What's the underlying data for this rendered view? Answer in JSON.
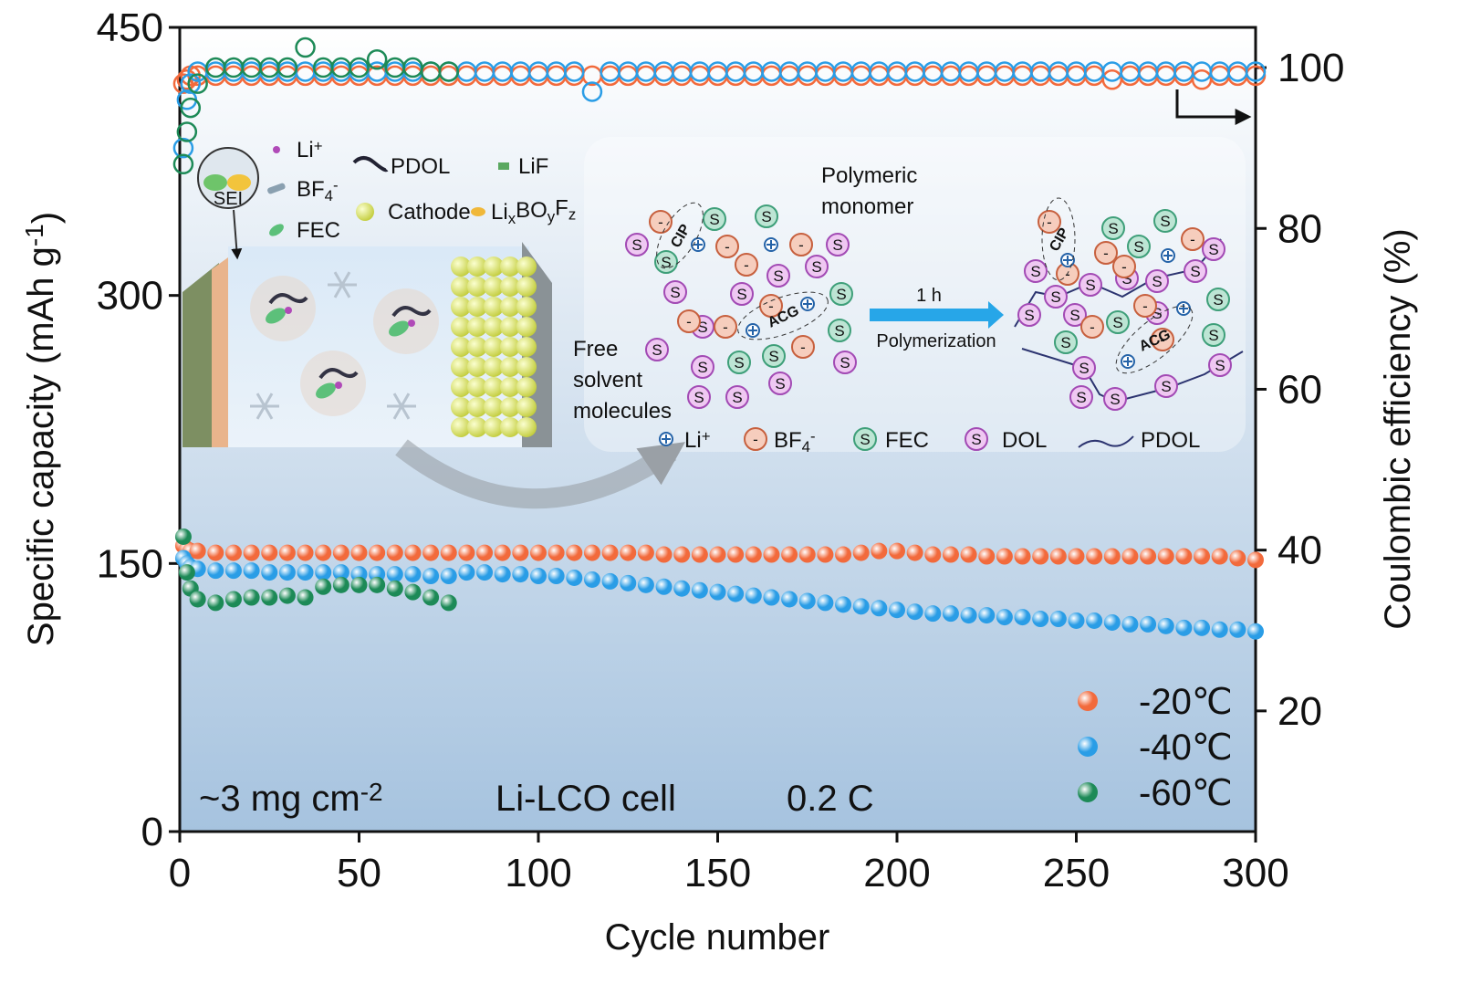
{
  "chart_data": {
    "type": "scatter",
    "x_label": "Cycle number",
    "y_label": [
      {
        "t": "Specific capacity (mAh g"
      },
      {
        "sup": "-1"
      },
      {
        "t": ")"
      }
    ],
    "y2_label": "Coulombic efficiency (%)",
    "xlim": [
      0,
      300
    ],
    "xticks": [
      0,
      50,
      100,
      150,
      200,
      250,
      300
    ],
    "ylim": [
      0,
      450
    ],
    "yticks": [
      0,
      150,
      300,
      450
    ],
    "y2lim": [
      5,
      105
    ],
    "y2ticks": [
      20,
      40,
      60,
      80,
      100
    ],
    "x": [
      1,
      2,
      3,
      5,
      10,
      15,
      20,
      25,
      30,
      35,
      40,
      45,
      50,
      55,
      60,
      65,
      70,
      75,
      80,
      85,
      90,
      95,
      100,
      105,
      110,
      115,
      120,
      125,
      130,
      135,
      140,
      145,
      150,
      155,
      160,
      165,
      170,
      175,
      180,
      185,
      190,
      195,
      200,
      205,
      210,
      215,
      220,
      225,
      230,
      235,
      240,
      245,
      250,
      255,
      260,
      265,
      270,
      275,
      280,
      285,
      290,
      295,
      300
    ],
    "series": [
      {
        "name": "-20℃",
        "color": "#f26a3c",
        "values": [
          160,
          158,
          157,
          157,
          156,
          156,
          156,
          156,
          156,
          156,
          156,
          156,
          156,
          156,
          156,
          156,
          156,
          156,
          156,
          156,
          156,
          156,
          156,
          156,
          156,
          156,
          156,
          156,
          156,
          155,
          155,
          155,
          155,
          155,
          155,
          155,
          155,
          155,
          155,
          155,
          156,
          157,
          157,
          156,
          155,
          155,
          155,
          154,
          154,
          154,
          154,
          154,
          154,
          154,
          154,
          154,
          154,
          154,
          154,
          154,
          154,
          153,
          152
        ],
        "efficiency": [
          98,
          98.5,
          99,
          99,
          99,
          99,
          99,
          99,
          99,
          99,
          99,
          99,
          99,
          99,
          99,
          99,
          99,
          99,
          99,
          99,
          99,
          99,
          99,
          99,
          99,
          99,
          99,
          99,
          99,
          99,
          99,
          99,
          99,
          99,
          99,
          99,
          99,
          99,
          99,
          99,
          99,
          99,
          99,
          99,
          99,
          99,
          99,
          99,
          99,
          99,
          99,
          99,
          99,
          99,
          98.5,
          99,
          99,
          99,
          99,
          98.5,
          99,
          99,
          99
        ]
      },
      {
        "name": "-40℃",
        "color": "#2a9de6",
        "values": [
          153,
          150,
          148,
          147,
          146,
          146,
          146,
          145,
          145,
          145,
          145,
          145,
          144,
          144,
          144,
          144,
          143,
          143,
          145,
          145,
          144,
          144,
          143,
          143,
          142,
          141,
          140,
          139,
          138,
          137,
          136,
          135,
          134,
          133,
          132,
          131,
          130,
          129,
          128,
          127,
          126,
          125,
          124,
          123,
          122,
          122,
          121,
          121,
          120,
          120,
          119,
          119,
          118,
          118,
          117,
          116,
          116,
          115,
          114,
          114,
          113,
          113,
          112
        ],
        "efficiency": [
          90,
          96,
          98,
          99.5,
          99.5,
          99.5,
          99.5,
          99.5,
          99.5,
          99.5,
          99.5,
          99.5,
          99.5,
          99.5,
          99.5,
          99.5,
          99.5,
          99.5,
          99.5,
          99.5,
          99.5,
          99.5,
          99.5,
          99.5,
          99.5,
          97,
          99.5,
          99.5,
          99.5,
          99.5,
          99.5,
          99.5,
          99.5,
          99.5,
          99.5,
          99.5,
          99.5,
          99.5,
          99.5,
          99.5,
          99.5,
          99.5,
          99.5,
          99.5,
          99.5,
          99.5,
          99.5,
          99.5,
          99.5,
          99.5,
          99.5,
          99.5,
          99.5,
          99.5,
          99.5,
          99.5,
          99.5,
          99.5,
          99.5,
          99.5,
          99.5,
          99.5,
          99.5
        ]
      },
      {
        "name": "-60℃",
        "color": "#1d8a57",
        "values": [
          165,
          145,
          136,
          130,
          128,
          130,
          131,
          131,
          132,
          131,
          137,
          138,
          138,
          138,
          136,
          134,
          131,
          128,
          null,
          null,
          null,
          null,
          null,
          null,
          null,
          null,
          null,
          null,
          null,
          null,
          null,
          null,
          null,
          null,
          null,
          null,
          null,
          null,
          null,
          null,
          null,
          null,
          null,
          null,
          null,
          null,
          null,
          null,
          null,
          null,
          null,
          null,
          null,
          null,
          null,
          null,
          null,
          null,
          null,
          null,
          null,
          null,
          null
        ],
        "efficiency": [
          88,
          92,
          95,
          98,
          100,
          100,
          100,
          100,
          100,
          102.5,
          100,
          100,
          100,
          101,
          100,
          100,
          99.5,
          99.5,
          null,
          null,
          null,
          null,
          null,
          null,
          null,
          null,
          null,
          null,
          null,
          null,
          null,
          null,
          null,
          null,
          null,
          null,
          null,
          null,
          null,
          null,
          null,
          null,
          null,
          null,
          null,
          null,
          null,
          null,
          null,
          null,
          null,
          null,
          null,
          null,
          null,
          null,
          null,
          null,
          null,
          null,
          null,
          null,
          null
        ]
      }
    ],
    "loading": [
      {
        "t": "~3 mg cm"
      },
      {
        "sup": "-2"
      }
    ],
    "annotations": [
      "Li-LCO cell",
      "0.2 C"
    ],
    "inset": {
      "sei": "SEI",
      "components": [
        [
          {
            "t": "Li"
          },
          {
            "sup": "+"
          }
        ],
        [
          {
            "t": "BF"
          },
          {
            "sub": "4"
          },
          {
            "sup": "-"
          }
        ],
        [
          {
            "t": "FEC"
          }
        ],
        [
          {
            "t": "PDOL"
          }
        ],
        [
          {
            "t": "Cathode"
          }
        ],
        [
          {
            "t": "LiF"
          }
        ],
        [
          {
            "t": "Li"
          },
          {
            "sub": "x"
          },
          {
            "t": "BO"
          },
          {
            "sub": "y"
          },
          {
            "t": "F"
          },
          {
            "sub": "z"
          }
        ]
      ],
      "monomer": [
        "Polymeric",
        "monomer"
      ],
      "free_solvent": [
        "Free",
        "solvent",
        "molecules"
      ],
      "time": "1 h",
      "process": "Polymerization",
      "cip": "CIP",
      "acg": "ACG",
      "solvent_symbol": "S",
      "anion_symbol": "-",
      "species": [
        [
          {
            "t": "Li"
          },
          {
            "sup": "+"
          }
        ],
        [
          {
            "t": "BF"
          },
          {
            "sub": "4"
          },
          {
            "sup": "-"
          }
        ],
        [
          {
            "t": "FEC"
          }
        ],
        [
          {
            "t": "DOL"
          }
        ],
        [
          {
            "t": "PDOL"
          }
        ]
      ]
    }
  }
}
